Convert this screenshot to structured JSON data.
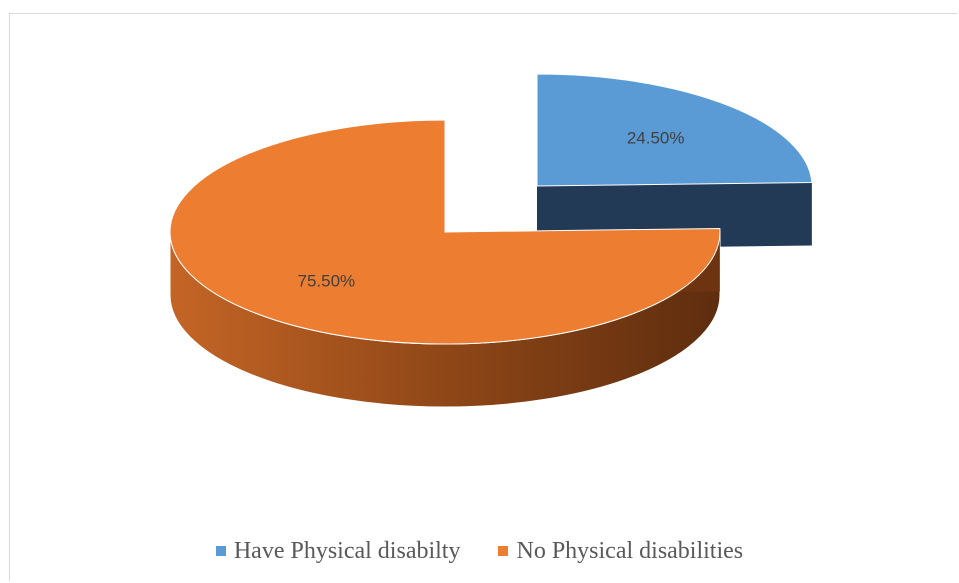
{
  "chart_data": {
    "type": "pie",
    "style": "3d-exploded",
    "categories": [
      "Have Physical disabilty",
      "No Physical disabilities"
    ],
    "values": [
      24.5,
      75.5
    ],
    "data_labels": [
      "24.50%",
      "75.50%"
    ],
    "colors": [
      "#5b9bd5",
      "#ed7d31"
    ],
    "side_colors": [
      "#223a56",
      "#6e3412"
    ],
    "legend_position": "bottom"
  }
}
